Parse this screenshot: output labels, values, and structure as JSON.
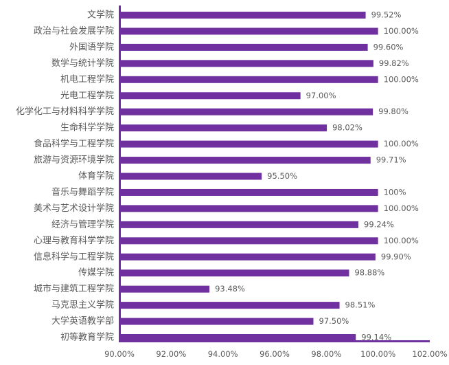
{
  "chart_data": {
    "type": "bar",
    "orientation": "horizontal",
    "categories": [
      "文学院",
      "政治与社会发展学院",
      "外国语学院",
      "数学与统计学院",
      "机电工程学院",
      "光电工程学院",
      "化学化工与材料科学学院",
      "生命科学学院",
      "食品科学与工程学院",
      "旅游与资源环境学院",
      "体育学院",
      "音乐与舞蹈学院",
      "美术与艺术设计学院",
      "经济与管理学院",
      "心理与教育科学学院",
      "信息科学与工程学院",
      "传媒学院",
      "城市与建筑工程学院",
      "马克思主义学院",
      "大学英语教学部",
      "初等教育学院"
    ],
    "values": [
      99.52,
      100.0,
      99.6,
      99.82,
      100.0,
      97.0,
      99.8,
      98.02,
      100.0,
      99.71,
      95.5,
      100,
      100.0,
      99.24,
      100.0,
      99.9,
      98.88,
      93.48,
      98.51,
      97.5,
      99.14
    ],
    "data_labels": [
      "99.52%",
      "100.00%",
      "99.60%",
      "99.82%",
      "100.00%",
      "97.00%",
      "99.80%",
      "98.02%",
      "100.00%",
      "99.71%",
      "95.50%",
      "100%",
      "100.00%",
      "99.24%",
      "100.00%",
      "99.90%",
      "98.88%",
      "93.48%",
      "98.51%",
      "97.50%",
      "99.14%"
    ],
    "xlim": [
      90,
      102
    ],
    "x_ticks": [
      "90.00%",
      "92.00%",
      "94.00%",
      "96.00%",
      "98.00%",
      "100.00%",
      "102.00%"
    ],
    "grid": false,
    "bar_color": "#7030a0",
    "axis_color": "#7030a0"
  }
}
